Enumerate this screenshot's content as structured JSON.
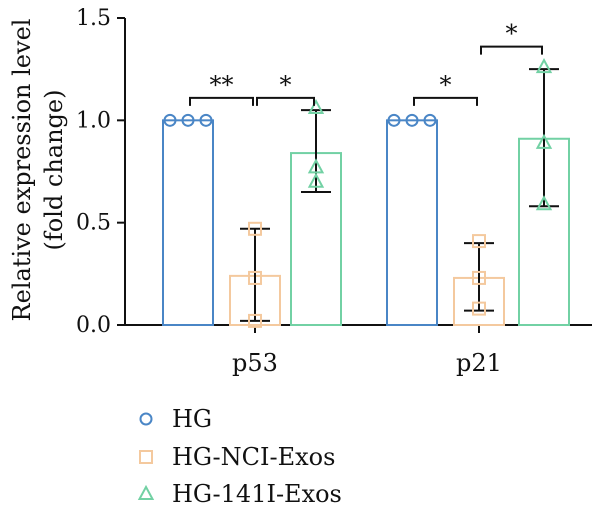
{
  "chart_data": {
    "type": "bar",
    "ylabel_line1": "Relative expression level",
    "ylabel_line2": "(fold change)",
    "ylim": [
      0,
      1.5
    ],
    "yticks": [
      "0.0",
      "0.5",
      "1.0",
      "1.5"
    ],
    "ytick_values": [
      0,
      0.5,
      1.0,
      1.5
    ],
    "categories": [
      "p53",
      "p21"
    ],
    "series": [
      {
        "name": "HG",
        "marker": "circle",
        "color": "#4a86c6",
        "values": [
          1.0,
          1.0
        ],
        "error": [
          [
            1.0,
            1.0
          ],
          [
            1.0,
            1.0
          ]
        ],
        "points": [
          [
            1.0,
            1.0,
            1.0
          ],
          [
            1.0,
            1.0,
            1.0
          ]
        ]
      },
      {
        "name": "HG-NCI-Exos",
        "marker": "square",
        "color": "#f4c99e",
        "values": [
          0.24,
          0.23
        ],
        "error": [
          [
            0.02,
            0.47
          ],
          [
            0.07,
            0.4
          ]
        ],
        "points": [
          [
            0.47,
            0.23,
            0.02
          ],
          [
            0.41,
            0.23,
            0.08
          ]
        ]
      },
      {
        "name": "HG-141I-Exos",
        "marker": "triangle",
        "color": "#72d1a4",
        "values": [
          0.84,
          0.91
        ],
        "error": [
          [
            0.65,
            1.05
          ],
          [
            0.58,
            1.25
          ]
        ],
        "points": [
          [
            1.06,
            0.77,
            0.7
          ],
          [
            1.26,
            0.89,
            0.59
          ]
        ]
      }
    ],
    "significance": [
      {
        "category": 0,
        "from": 0,
        "to": 1,
        "label": "**"
      },
      {
        "category": 0,
        "from": 1,
        "to": 2,
        "label": "*"
      },
      {
        "category": 1,
        "from": 0,
        "to": 1,
        "label": "*"
      },
      {
        "category": 1,
        "from": 1,
        "to": 2,
        "label": "*"
      }
    ]
  }
}
